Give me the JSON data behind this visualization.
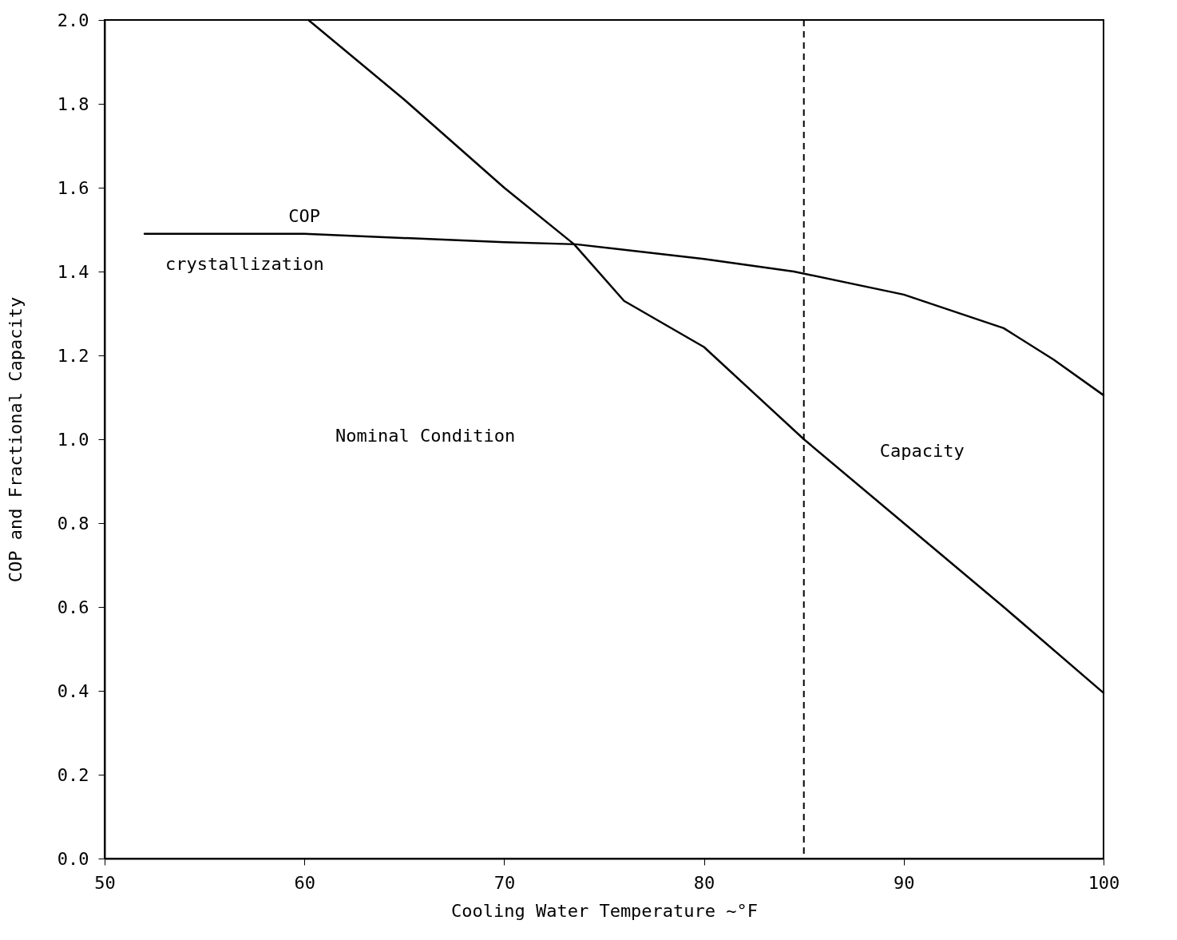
{
  "chart_data": {
    "type": "line",
    "xlabel": "Cooling Water Temperature ~°F",
    "ylabel": "COP and Fractional Capacity",
    "xlim": [
      50,
      100
    ],
    "xticks": [
      50,
      60,
      70,
      80,
      90,
      100
    ],
    "ylim": [
      0,
      2
    ],
    "yticks": [
      {
        "value": 0,
        "label": "0.0"
      },
      {
        "value": 0.2,
        "label": "0.2"
      },
      {
        "value": 0.4,
        "label": "0.4"
      },
      {
        "value": 0.6,
        "label": "0.6"
      },
      {
        "value": 0.8,
        "label": "0.8"
      },
      {
        "value": 1,
        "label": "1.0"
      },
      {
        "value": 1.2,
        "label": "1.2"
      },
      {
        "value": 1.4,
        "label": "1.4"
      },
      {
        "value": 1.6,
        "label": "1.6"
      },
      {
        "value": 1.8,
        "label": "1.8"
      },
      {
        "value": 2,
        "label": "2.0"
      }
    ],
    "series": [
      {
        "name": "COP",
        "color": "#000000",
        "x": [
          52,
          60,
          70,
          73.6,
          80,
          84.5,
          90,
          95,
          97.5,
          100
        ],
        "values": [
          1.49,
          1.49,
          1.47,
          1.465,
          1.43,
          1.4,
          1.345,
          1.265,
          1.19,
          1.105
        ]
      },
      {
        "name": "Capacity",
        "color": "#000000",
        "x": [
          60.2,
          65,
          70,
          73.5,
          76,
          80,
          85,
          90,
          95,
          100
        ],
        "values": [
          2.0,
          1.81,
          1.6,
          1.465,
          1.33,
          1.22,
          1.0,
          0.8,
          0.6,
          0.395
        ]
      }
    ],
    "ref_lines": [
      {
        "axis": "x",
        "value": 85,
        "line_style": "dashed",
        "color": "#000000"
      }
    ],
    "annotations": [
      "Nominal Condition",
      "crystallization"
    ],
    "grid": false,
    "legend": false,
    "marker": "none",
    "line_style": "solid"
  }
}
